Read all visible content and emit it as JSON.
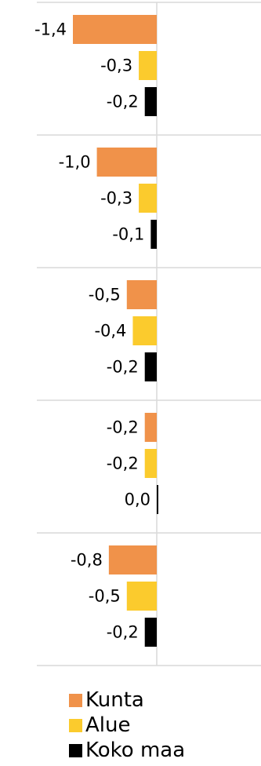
{
  "chart_data": {
    "type": "bar",
    "orientation": "horizontal",
    "groups": 5,
    "series": [
      {
        "name": "Kunta",
        "color": "#F0924A",
        "values": [
          -1.4,
          -1.0,
          -0.5,
          -0.2,
          -0.8
        ],
        "labels": [
          "-1,4",
          "-1,0",
          "-0,5",
          "-0,2",
          "-0,8"
        ]
      },
      {
        "name": "Alue",
        "color": "#FBCB2D",
        "values": [
          -0.3,
          -0.3,
          -0.4,
          -0.2,
          -0.5
        ],
        "labels": [
          "-0,3",
          "-0,3",
          "-0,4",
          "-0,2",
          "-0,5"
        ]
      },
      {
        "name": "Koko maa",
        "color": "#000000",
        "values": [
          -0.2,
          -0.1,
          -0.2,
          0.0,
          -0.2
        ],
        "labels": [
          "-0,2",
          "-0,1",
          "-0,2",
          "0,0",
          "-0,2"
        ]
      }
    ],
    "xlim": [
      -1.4,
      1.7
    ],
    "grid": true,
    "legend_position": "bottom"
  }
}
